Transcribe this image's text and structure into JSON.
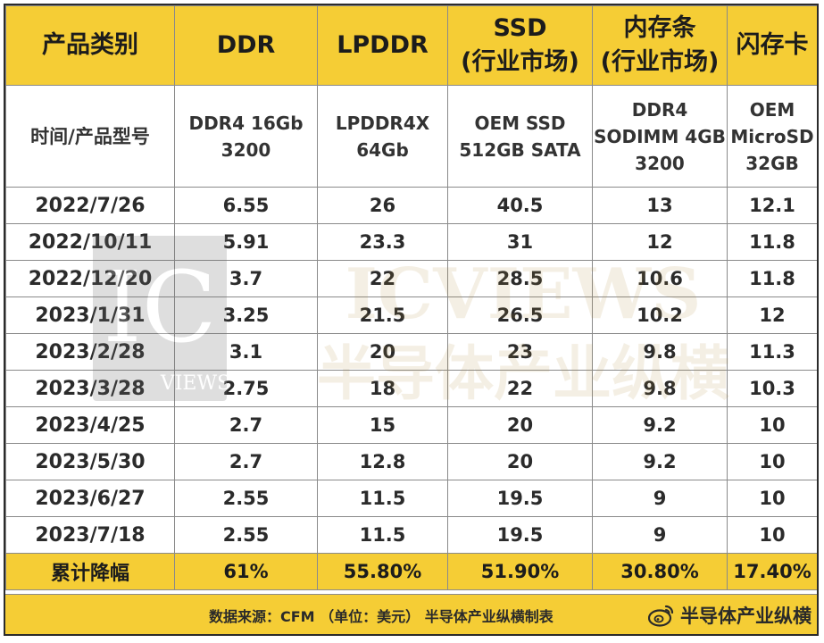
{
  "chart_data": {
    "type": "table",
    "columns": [
      "产品类别",
      "DDR",
      "LPDDR",
      "SSD\n(行业市场)",
      "内存条\n(行业市场)",
      "闪存卡"
    ],
    "model_row_label": "时间/产品型号",
    "models": [
      "DDR4 16Gb\n3200",
      "LPDDR4X\n64Gb",
      "OEM SSD\n512GB SATA",
      "DDR4\nSODIMM 4GB\n3200",
      "OEM\nMicroSD\n32GB"
    ],
    "rows": [
      {
        "date": "2022/7/26",
        "values": [
          "6.55",
          "26",
          "40.5",
          "13",
          "12.1"
        ]
      },
      {
        "date": "2022/10/11",
        "values": [
          "5.91",
          "23.3",
          "31",
          "12",
          "11.8"
        ]
      },
      {
        "date": "2022/12/20",
        "values": [
          "3.7",
          "22",
          "28.5",
          "10.6",
          "11.8"
        ]
      },
      {
        "date": "2023/1/31",
        "values": [
          "3.25",
          "21.5",
          "26.5",
          "10.2",
          "12"
        ]
      },
      {
        "date": "2023/2/28",
        "values": [
          "3.1",
          "20",
          "23",
          "9.8",
          "11.3"
        ]
      },
      {
        "date": "2023/3/28",
        "values": [
          "2.75",
          "18",
          "22",
          "9.8",
          "10.3"
        ]
      },
      {
        "date": "2023/4/25",
        "values": [
          "2.7",
          "15",
          "20",
          "9.2",
          "10"
        ]
      },
      {
        "date": "2023/5/30",
        "values": [
          "2.7",
          "12.8",
          "20",
          "9.2",
          "10"
        ]
      },
      {
        "date": "2023/6/27",
        "values": [
          "2.55",
          "11.5",
          "19.5",
          "9",
          "10"
        ]
      },
      {
        "date": "2023/7/18",
        "values": [
          "2.55",
          "11.5",
          "19.5",
          "9",
          "10"
        ]
      }
    ],
    "summary": {
      "label": "累计降幅",
      "values": [
        "61%",
        "55.80%",
        "51.90%",
        "30.80%",
        "17.40%"
      ]
    },
    "source_note": "数据来源：CFM （单位：美元）   半导体产业纵横制表",
    "watermark": {
      "logo_text": "IC",
      "logo_sub": "VIEWS",
      "name": "ICVIEWS",
      "name_cn": "半导体产业纵横"
    }
  },
  "brand": {
    "label": "半导体产业纵横",
    "icon": "weibo-icon"
  },
  "colors": {
    "header_bg": "#f5cd35",
    "border": "#8a8a8a",
    "text": "#2b2b2b",
    "watermark": "#b08a3a"
  }
}
